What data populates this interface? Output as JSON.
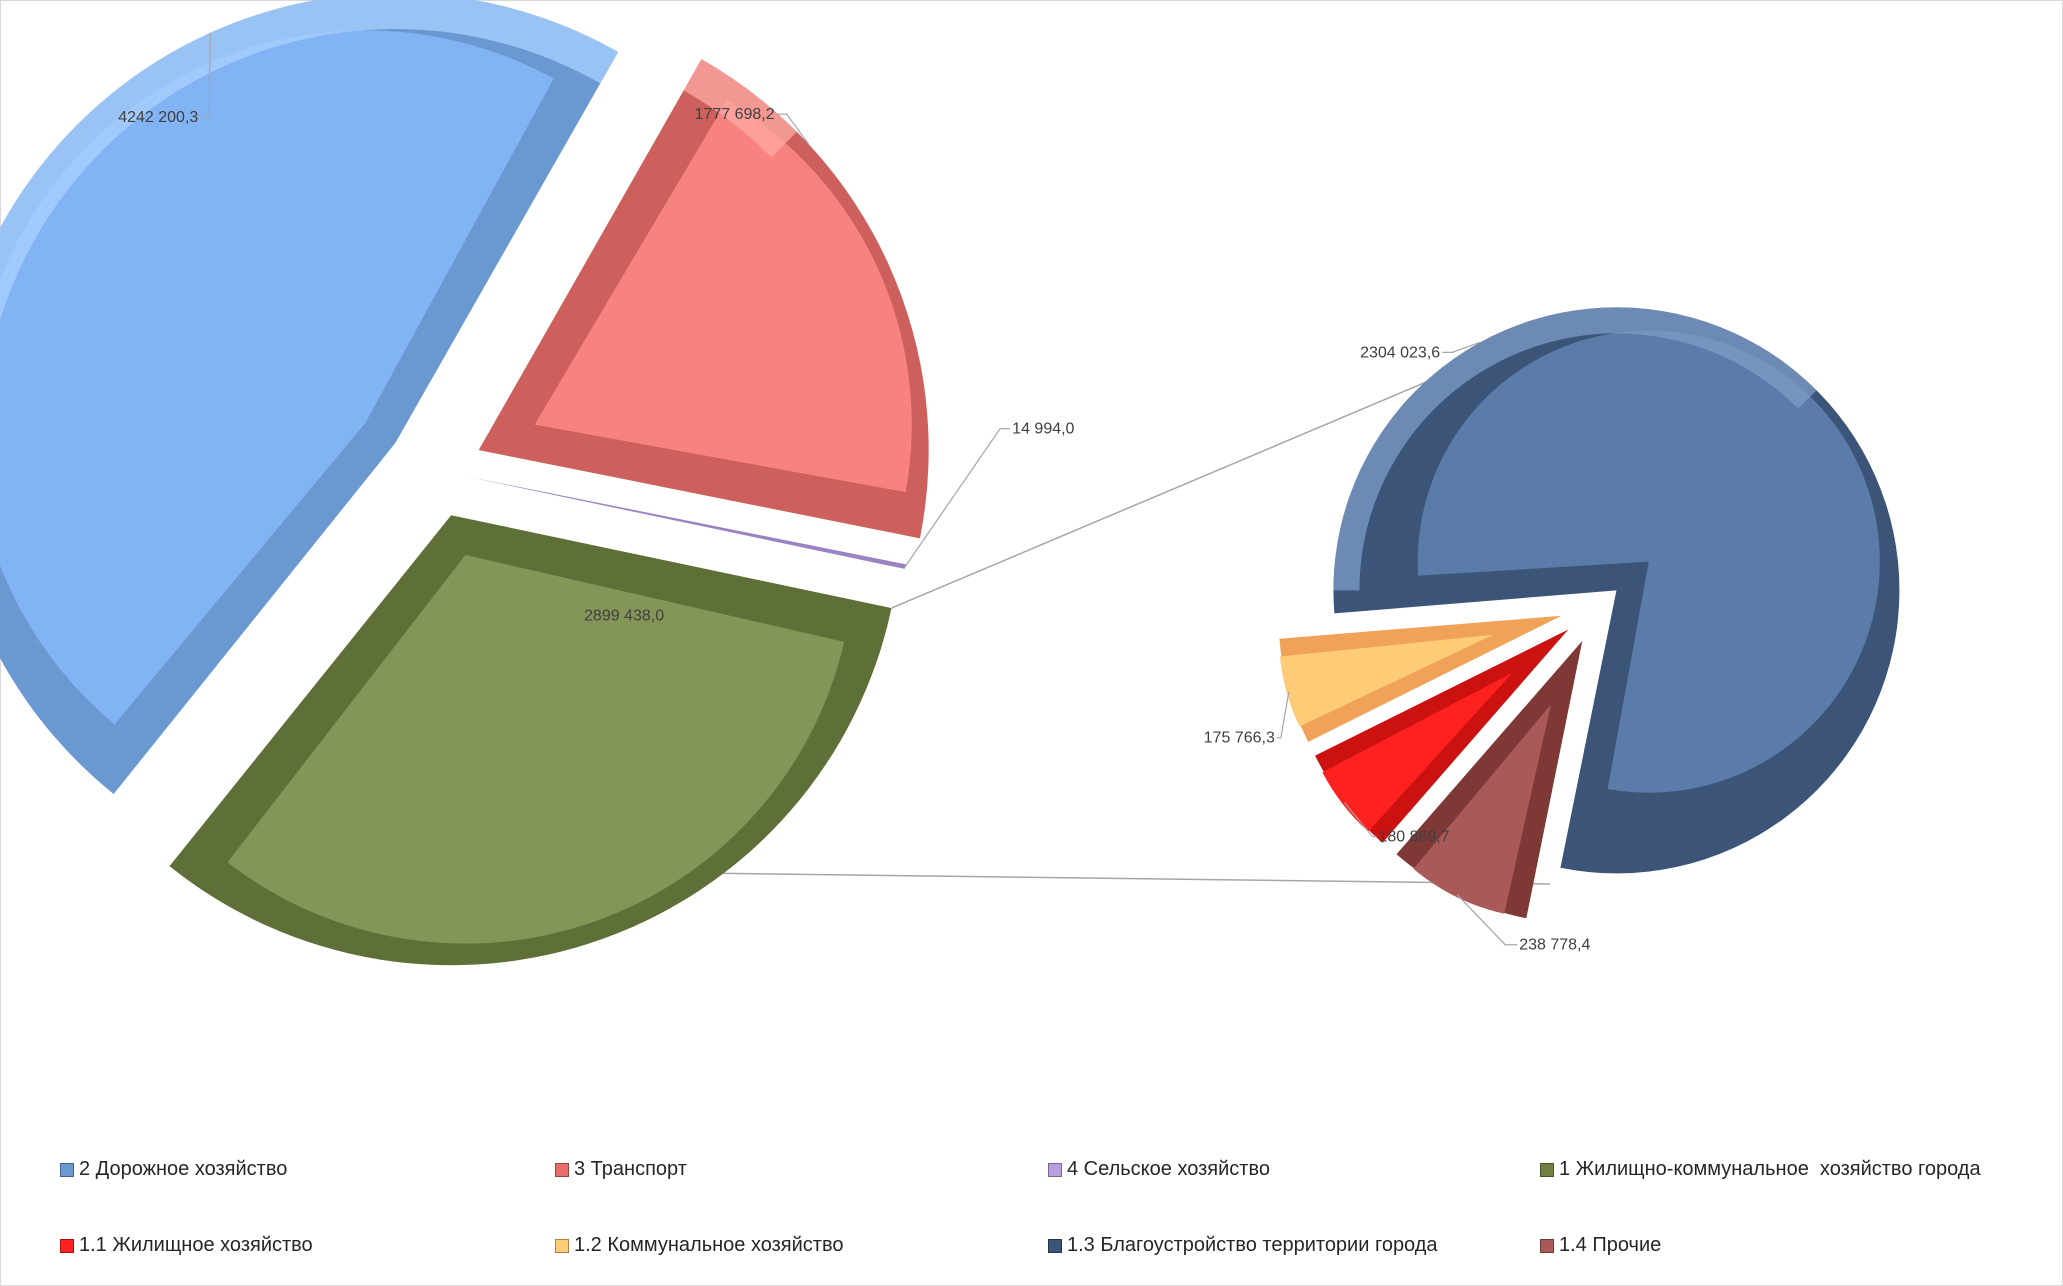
{
  "chart_data": [
    {
      "type": "pie",
      "role": "main-pie",
      "slices": [
        {
          "name": "2 Дорожное хозяйство",
          "value": 4242200.3,
          "label": "4242 200,3",
          "color": "#82b3f4",
          "dark": "#6a99d2",
          "light": "#a9d2ff"
        },
        {
          "name": "3 Транспорт",
          "value": 1777698.2,
          "label": "1777 698,2",
          "color": "#f8827e",
          "dark": "#cd605c",
          "light": "#ffaaa6"
        },
        {
          "name": "4 Сельское хозяйство",
          "value": 14994.0,
          "label": "14 994,0",
          "color": "#b79edc",
          "dark": "#9b82c2",
          "light": "#d3c2ef"
        },
        {
          "name": "1 Жилищно-коммунальное  хозяйство города",
          "value": 2899438.0,
          "label": "2899 438,0",
          "color": "#839557",
          "dark": "#5e6f37",
          "light": "#9fb071"
        }
      ]
    },
    {
      "type": "pie",
      "role": "secondary-pie",
      "parent": "1 Жилищно-коммунальное  хозяйство города",
      "slices": [
        {
          "name": "1.3 Благоустройство территории города",
          "value": 2304023.6,
          "label": "2304 023,6",
          "color": "#5b7ca9",
          "dark": "#3b5477",
          "light": "#7e9cc8"
        },
        {
          "name": "1.4 Прочие",
          "value": 238778.4,
          "label": "238 778,4",
          "color": "#a95957",
          "dark": "#7e3836",
          "light": "#c7807e"
        },
        {
          "name": "1.1 Жилищное хозяйство",
          "value": 180869.7,
          "label": "180 869,7",
          "color": "#ff2020",
          "dark": "#cc1111",
          "light": "#ff6a6a"
        },
        {
          "name": "1.2 Коммунальное хозяйство",
          "value": 175766.3,
          "label": "175 766,3",
          "color": "#fecb76",
          "dark": "#f0a259",
          "light": "#ffe0a8"
        }
      ]
    }
  ],
  "legend": [
    {
      "label": "2 Дорожное хозяйство",
      "color": "#6a99d2"
    },
    {
      "label": "3 Транспорт",
      "color": "#e86c69"
    },
    {
      "label": "4 Сельское хозяйство",
      "color": "#b79edc"
    },
    {
      "label": "1 Жилищно-коммунальное  хозяйство города",
      "color": "#6f8040"
    },
    {
      "label": "1.1 Жилищное хозяйство",
      "color": "#ff2020"
    },
    {
      "label": "1.2 Коммунальное хозяйство",
      "color": "#fecb76"
    },
    {
      "label": "1.3 Благоустройство территории города",
      "color": "#3b5477"
    },
    {
      "label": "1.4 Прочие",
      "color": "#a95957"
    }
  ]
}
